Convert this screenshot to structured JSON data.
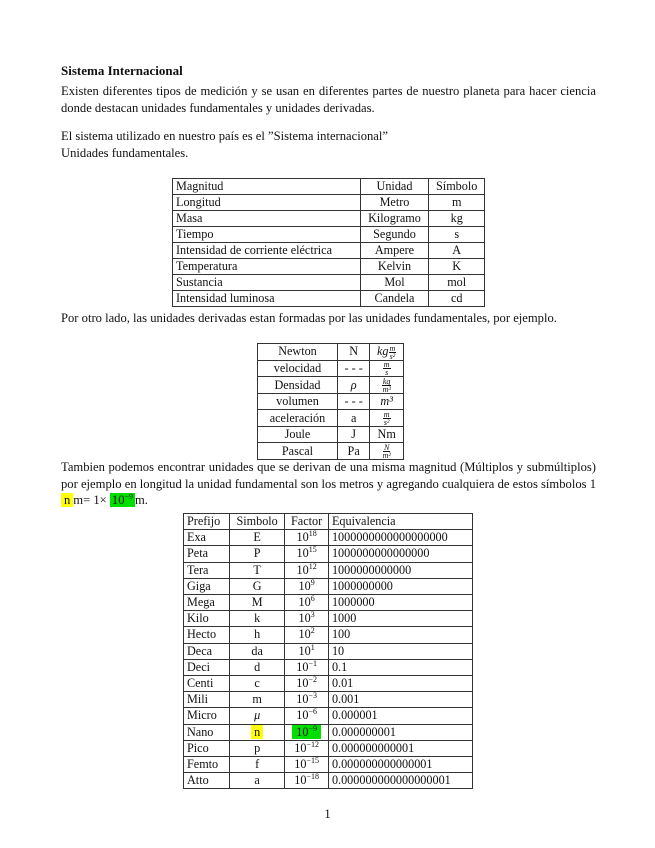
{
  "title": "Sistema Internacional",
  "intro": "Existen diferentes tipos de medición y se usan en diferentes partes de nuestro planeta para hacer ciencia donde destacan unidades fundamentales y unidades derivadas.",
  "system_line": "El sistema utilizado en nuestro país es el ”Sistema internacional”",
  "fundamental_label": "Unidades fundamentales.",
  "fundamental_table": {
    "headers": [
      "Magnitud",
      "Unidad",
      "Símbolo"
    ],
    "rows": [
      [
        "Longitud",
        "Metro",
        "m"
      ],
      [
        "Masa",
        "Kilogramo",
        "kg"
      ],
      [
        "Tiempo",
        "Segundo",
        "s"
      ],
      [
        "Intensidad de corriente eléctrica",
        "Ampere",
        "A"
      ],
      [
        "Temperatura",
        "Kelvin",
        "K"
      ],
      [
        "Sustancia",
        "Mol",
        "mol"
      ],
      [
        "Intensidad luminosa",
        "Candela",
        "cd"
      ]
    ]
  },
  "derived_intro": "Por otro lado, las unidades derivadas estan formadas por las unidades fundamentales, por ejemplo.",
  "derived_table": {
    "rows": [
      {
        "name": "Newton",
        "symbol": "N",
        "unit_pre": "kg",
        "num": "m",
        "den": "s²"
      },
      {
        "name": "velocidad",
        "symbol": "- - -",
        "num": "m",
        "den": "s"
      },
      {
        "name": "Densidad",
        "symbol": "ρ",
        "num": "kg",
        "den": "m³"
      },
      {
        "name": "volumen",
        "symbol": "- - -",
        "unit": "m³"
      },
      {
        "name": "aceleración",
        "symbol": "a",
        "num": "m",
        "den": "s²"
      },
      {
        "name": "Joule",
        "symbol": "J",
        "unit": "Nm"
      },
      {
        "name": "Pascal",
        "symbol": "Pa",
        "num": "N",
        "den": "m²"
      }
    ]
  },
  "multiples_para": {
    "text": "Tambien podemos encontrar unidades que se derivan de una misma magnitud (Múltiplos y submúltiplos) por ejemplo en longitud la unidad fundamental son los metros y agregando cualquiera de estos símbolos 1 ",
    "highlight_symbol": "n",
    "mid": "m= 1×",
    "highlight_factor_base": "10",
    "highlight_factor_exp": "−9",
    "end": "m."
  },
  "highlight_colors": {
    "symbol": "#ffff00",
    "factor": "#00e000"
  },
  "prefix_table": {
    "headers": [
      "Prefijo",
      "Simbolo",
      "Factor",
      "Equivalencia"
    ],
    "rows": [
      [
        "Exa",
        "E",
        "18",
        "1000000000000000000"
      ],
      [
        "Peta",
        "P",
        "15",
        "1000000000000000"
      ],
      [
        "Tera",
        "T",
        "12",
        "1000000000000"
      ],
      [
        "Giga",
        "G",
        "9",
        "1000000000"
      ],
      [
        "Mega",
        "M",
        "6",
        "1000000"
      ],
      [
        "Kilo",
        "k",
        "3",
        "1000"
      ],
      [
        "Hecto",
        "h",
        "2",
        "100"
      ],
      [
        "Deca",
        "da",
        "1",
        "10"
      ],
      [
        "Deci",
        "d",
        "−1",
        "0.1"
      ],
      [
        "Centi",
        "c",
        "−2",
        "0.01"
      ],
      [
        "Mili",
        "m",
        "−3",
        "0.001"
      ],
      [
        "Micro",
        "μ",
        "−6",
        "0.000001"
      ],
      [
        "Nano",
        "n",
        "−9",
        "0.000000001"
      ],
      [
        "Pico",
        "p",
        "−12",
        "0.000000000001"
      ],
      [
        "Femto",
        "f",
        "−15",
        "0.000000000000001"
      ],
      [
        "Atto",
        "a",
        "−18",
        "0.000000000000000001"
      ]
    ],
    "highlighted_row": "Nano"
  },
  "page_number": "1"
}
